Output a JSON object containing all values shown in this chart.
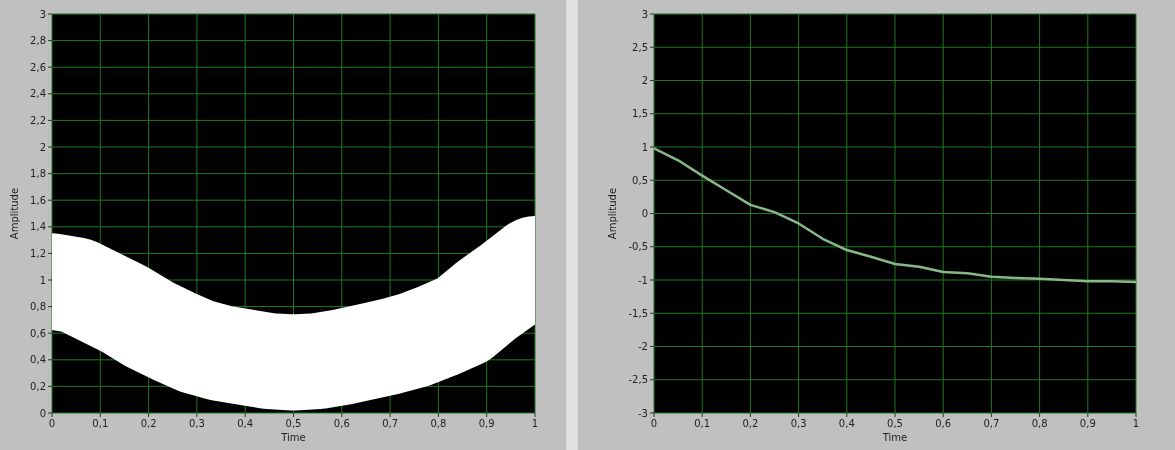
{
  "chart_data": [
    {
      "type": "line",
      "xlabel": "Time",
      "ylabel": "Amplitude",
      "x": [
        0,
        0.05,
        0.1,
        0.15,
        0.2,
        0.25,
        0.3,
        0.35,
        0.4,
        0.45,
        0.5,
        0.55,
        0.6,
        0.65,
        0.7,
        0.75,
        0.8,
        0.85,
        0.9,
        0.95,
        1
      ],
      "series": [
        {
          "color": "#ffffff",
          "values": [
            0.99,
            0.96,
            0.87,
            0.78,
            0.67,
            0.58,
            0.5,
            0.45,
            0.42,
            0.39,
            0.38,
            0.39,
            0.42,
            0.46,
            0.5,
            0.55,
            0.62,
            0.7,
            0.85,
            0.98,
            1.12
          ]
        }
      ],
      "xlim": [
        0,
        1
      ],
      "xticks": [
        {
          "value": 0,
          "label": "0"
        },
        {
          "value": 0.1,
          "label": "0,1"
        },
        {
          "value": 0.2,
          "label": "0,2"
        },
        {
          "value": 0.3,
          "label": "0,3"
        },
        {
          "value": 0.4,
          "label": "0,4"
        },
        {
          "value": 0.5,
          "label": "0,5"
        },
        {
          "value": 0.6,
          "label": "0,6"
        },
        {
          "value": 0.7,
          "label": "0,7"
        },
        {
          "value": 0.8,
          "label": "0,8"
        },
        {
          "value": 0.9,
          "label": "0,9"
        },
        {
          "value": 1,
          "label": "1"
        }
      ],
      "ylim": [
        0,
        3
      ],
      "yticks": [
        {
          "value": 0,
          "label": "0"
        },
        {
          "value": 0.2,
          "label": "0,2"
        },
        {
          "value": 0.4,
          "label": "0,4"
        },
        {
          "value": 0.6,
          "label": "0,6"
        },
        {
          "value": 0.8,
          "label": "0,8"
        },
        1,
        {
          "value": 1.2,
          "label": "1,2"
        },
        {
          "value": 1.4,
          "label": "1,4"
        },
        {
          "value": 1.6,
          "label": "1,6"
        },
        {
          "value": 1.8,
          "label": "1,8"
        },
        2,
        {
          "value": 2.2,
          "label": "2,2"
        },
        {
          "value": 2.4,
          "label": "2,4"
        },
        {
          "value": 2.6,
          "label": "2,6"
        },
        {
          "value": 2.8,
          "label": "2,8"
        },
        {
          "value": 3,
          "label": "3"
        }
      ],
      "grid": true
    },
    {
      "type": "line",
      "xlabel": "Time",
      "ylabel": "Amplitude",
      "x": [
        0,
        0.05,
        0.1,
        0.15,
        0.2,
        0.25,
        0.3,
        0.35,
        0.4,
        0.45,
        0.5,
        0.55,
        0.6,
        0.65,
        0.7,
        0.75,
        0.8,
        0.85,
        0.9,
        0.95,
        1
      ],
      "series": [
        {
          "color": "#88b888",
          "values": [
            0.98,
            0.8,
            0.57,
            0.35,
            0.13,
            0.02,
            -0.15,
            -0.38,
            -0.55,
            -0.65,
            -0.76,
            -0.8,
            -0.88,
            -0.9,
            -0.95,
            -0.97,
            -0.98,
            -1,
            -1.02,
            -1.02,
            -1.03
          ]
        }
      ],
      "xlim": [
        0,
        1
      ],
      "xticks": [
        0,
        {
          "value": 0.1,
          "label": "0,1"
        },
        {
          "value": 0.2,
          "label": "0,2"
        },
        {
          "value": 0.3,
          "label": "0,3"
        },
        {
          "value": 0.4,
          "label": "0,4"
        },
        {
          "value": 0.5,
          "label": "0,5"
        },
        {
          "value": 0.6,
          "label": "0,6"
        },
        {
          "value": 0.7,
          "label": "0,7"
        },
        {
          "value": 0.8,
          "label": "0,8"
        },
        {
          "value": 0.9,
          "label": "0,9"
        },
        1
      ],
      "ylim": [
        -3,
        3
      ],
      "yticks": [
        -3,
        {
          "value": -2.5,
          "label": "-2,5"
        },
        -2,
        {
          "value": -1.5,
          "label": "-1,5"
        },
        -1,
        {
          "value": -0.5,
          "label": "-0,5"
        },
        0,
        {
          "value": 0.5,
          "label": "0,5"
        },
        1,
        {
          "value": 1.5,
          "label": "1,5"
        },
        2,
        {
          "value": 2.5,
          "label": "2,5"
        },
        3
      ],
      "grid": true
    }
  ]
}
